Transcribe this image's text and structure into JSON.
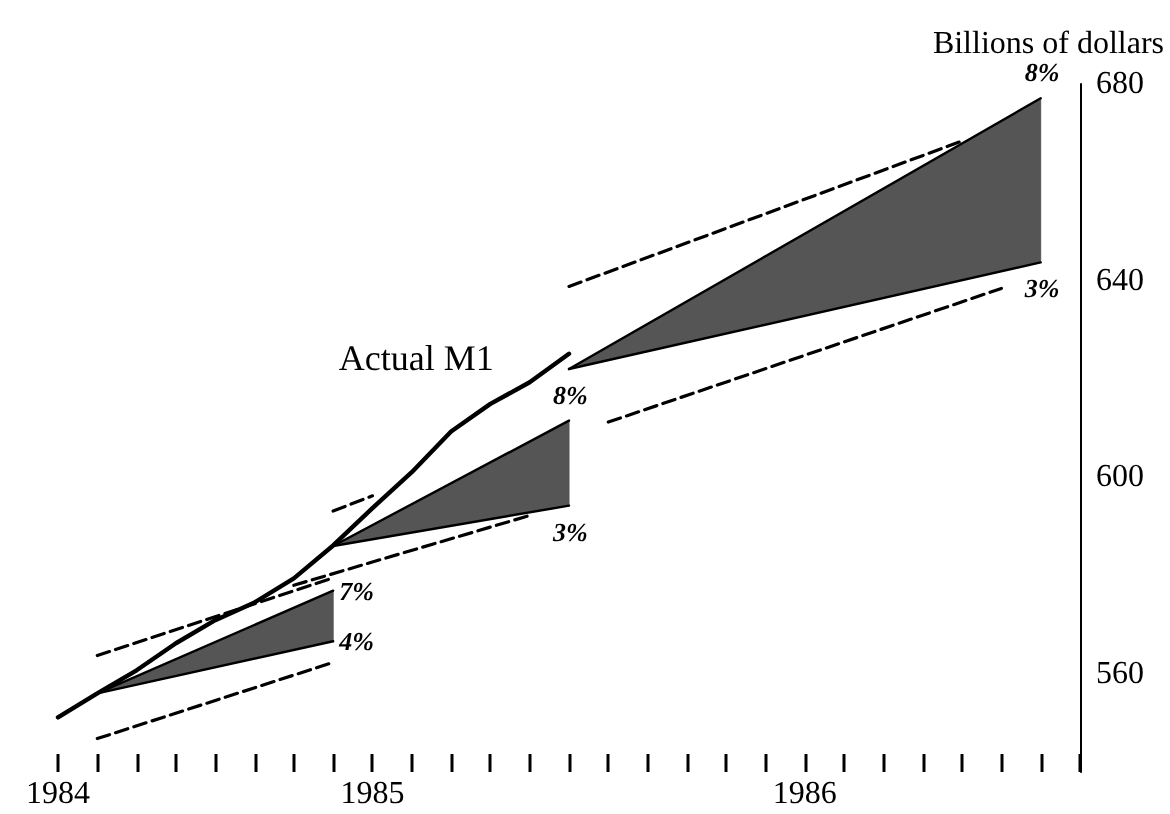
{
  "chart_data": {
    "type": "line",
    "ylabel": "Billions of dollars",
    "categories": [
      "1984",
      null,
      null,
      null,
      null,
      null,
      null,
      null,
      "1985",
      null,
      null,
      null,
      null,
      null,
      null,
      null,
      null,
      null,
      null,
      "1986",
      null,
      null,
      null,
      null,
      null,
      null,
      null
    ],
    "ylim": [
      540,
      680
    ],
    "yticks": [
      560,
      600,
      640,
      680
    ],
    "grid": false,
    "legend": false,
    "marker": "none",
    "series": [
      {
        "type": "area",
        "color": "#555555",
        "values": [
          null,
          556.0,
          null,
          null,
          null,
          null,
          null,
          576.9,
          null,
          null,
          null,
          null,
          null,
          null,
          null,
          null,
          null,
          null,
          null,
          null,
          null,
          null,
          null,
          null,
          null,
          null,
          null
        ]
      },
      {
        "type": "line",
        "line_style": "solid",
        "color": "#000000",
        "values": [
          null,
          556.0,
          null,
          null,
          null,
          null,
          null,
          566.6,
          null,
          null,
          null,
          null,
          null,
          null,
          null,
          null,
          null,
          null,
          null,
          null,
          null,
          null,
          null,
          null,
          null,
          null,
          null
        ]
      },
      {
        "type": "area",
        "color": "#555555",
        "values": [
          null,
          null,
          null,
          null,
          null,
          null,
          null,
          586.0,
          null,
          null,
          null,
          null,
          null,
          611.5,
          null,
          null,
          null,
          null,
          null,
          null,
          null,
          null,
          null,
          null,
          null,
          null,
          null
        ]
      },
      {
        "type": "line",
        "line_style": "solid",
        "color": "#000000",
        "values": [
          null,
          null,
          null,
          null,
          null,
          null,
          null,
          586.0,
          null,
          null,
          null,
          null,
          null,
          594.2,
          null,
          null,
          null,
          null,
          null,
          null,
          null,
          null,
          null,
          null,
          null,
          null,
          null
        ]
      },
      {
        "type": "area",
        "color": "#555555",
        "values": [
          null,
          null,
          null,
          null,
          null,
          null,
          null,
          null,
          null,
          null,
          null,
          null,
          null,
          622.0,
          null,
          null,
          null,
          null,
          null,
          null,
          null,
          null,
          null,
          null,
          null,
          677.1,
          null
        ]
      },
      {
        "type": "line",
        "line_style": "solid",
        "color": "#000000",
        "values": [
          null,
          null,
          null,
          null,
          null,
          null,
          null,
          null,
          null,
          null,
          null,
          null,
          null,
          622.0,
          null,
          null,
          null,
          null,
          null,
          null,
          null,
          null,
          null,
          null,
          null,
          643.7,
          null
        ]
      },
      {
        "type": "line",
        "line_style": "dashed",
        "color": "#000000",
        "values": [
          null,
          546.8,
          null,
          null,
          null,
          null,
          null,
          562.3,
          null,
          null,
          null,
          null,
          null,
          null,
          null,
          null,
          null,
          null,
          null,
          null,
          null,
          null,
          null,
          null,
          null,
          null,
          null
        ]
      },
      {
        "type": "line",
        "line_style": "dashed",
        "color": "#000000",
        "values": [
          null,
          563.7,
          null,
          null,
          null,
          null,
          null,
          579.5,
          null,
          null,
          null,
          null,
          null,
          null,
          null,
          null,
          null,
          null,
          null,
          null,
          null,
          null,
          null,
          null,
          null,
          null,
          null
        ]
      },
      {
        "type": "line",
        "line_style": "dashed",
        "color": "#000000",
        "values": [
          null,
          null,
          null,
          null,
          null,
          null,
          578.0,
          null,
          null,
          null,
          null,
          null,
          592.2,
          null,
          null,
          null,
          null,
          null,
          null,
          null,
          null,
          null,
          null,
          null,
          null,
          null,
          null
        ]
      },
      {
        "type": "line",
        "line_style": "dashed",
        "color": "#000000",
        "values": [
          null,
          null,
          null,
          null,
          null,
          null,
          null,
          593.1,
          596.2,
          null,
          null,
          null,
          null,
          null,
          null,
          null,
          null,
          null,
          null,
          null,
          null,
          null,
          null,
          null,
          null,
          null,
          null
        ]
      },
      {
        "type": "line",
        "line_style": "dashed",
        "color": "#000000",
        "values": [
          null,
          null,
          null,
          null,
          null,
          null,
          null,
          null,
          null,
          null,
          null,
          null,
          null,
          null,
          611.2,
          null,
          null,
          null,
          null,
          null,
          null,
          null,
          null,
          null,
          638.4,
          null,
          null
        ]
      },
      {
        "type": "line",
        "line_style": "dashed",
        "color": "#000000",
        "values": [
          null,
          null,
          null,
          null,
          null,
          null,
          null,
          null,
          null,
          null,
          null,
          null,
          null,
          638.8,
          null,
          null,
          null,
          null,
          null,
          null,
          null,
          null,
          null,
          668.4,
          null,
          null,
          null
        ]
      },
      {
        "name": "Actual M1",
        "line_style": "solid",
        "color": "#000000",
        "values": [
          551.1,
          556.0,
          560.7,
          566.2,
          570.9,
          574.5,
          579.4,
          586.1,
          593.7,
          601.0,
          609.3,
          614.9,
          619.3,
          625.1,
          null,
          null,
          null,
          null,
          null,
          null,
          null,
          null,
          null,
          null,
          null,
          null,
          null
        ]
      }
    ],
    "annotations": [
      "7%",
      "4%",
      {
        "text": "8%",
        "y": 611.5
      },
      {
        "text": "3%",
        "y": 594.2
      },
      {
        "text": "8%",
        "y": 677.1
      },
      {
        "text": "3%",
        "y": 643.7
      }
    ]
  }
}
